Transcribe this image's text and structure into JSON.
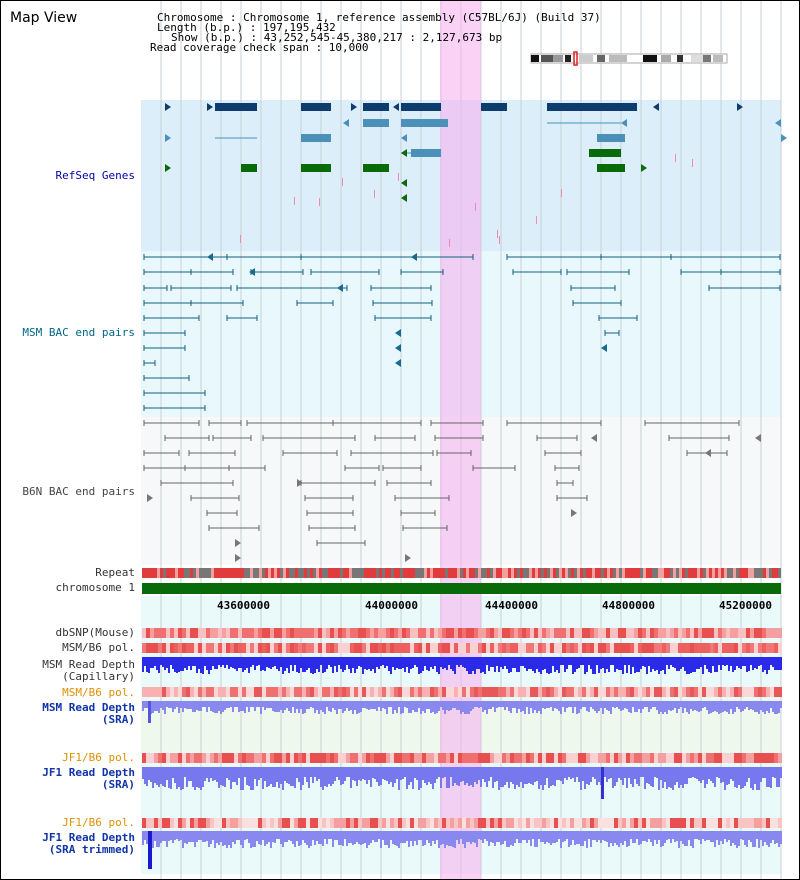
{
  "view": {
    "title": "Map View"
  },
  "info": {
    "chromosome": "Chromosome     : Chromosome 1, reference assembly (C57BL/6J) (Build 37)",
    "length": "Length (b.p.) : 197,195,432",
    "show": "Show (b.p.) : 43,252,545-45,380,217 : 2,127,673 bp",
    "coverage": "Read coverage check span : 10,000"
  },
  "tracks": {
    "refseq": "RefSeq Genes",
    "msm_bac": "MSM BAC end pairs",
    "b6n_bac": "B6N BAC end pairs",
    "repeat": "Repeat",
    "chromosome": "chromosome 1",
    "dbsnp": "dbSNP(Mouse)",
    "msm_b6_pol": "MSM/B6 pol.",
    "msm_depth_cap_1": "MSM Read Depth",
    "msm_depth_cap_2": "(Capillary)",
    "msm_b6_pol_2": "MSM/B6 pol.",
    "msm_depth_sra_1": "MSM Read Depth",
    "msm_depth_sra_2": "(SRA)",
    "jf1_pol": "JF1/B6 pol.",
    "jf1_depth_1": "JF1 Read Depth",
    "jf1_depth_2": "(SRA)",
    "jf1_pol_2": "JF1/B6 pol.",
    "jf1_trim_1": "JF1 Read Depth",
    "jf1_trim_2": "(SRA trimmed)"
  },
  "axis": {
    "ticks": [
      "43600000",
      "44000000",
      "44400000",
      "44800000",
      "45200000"
    ]
  },
  "colors": {
    "highlight": "#f5b4f0",
    "gene_dark": "#0d3c6e",
    "gene_mid": "#4a90b8",
    "gene_green": "#0a6a0a",
    "depth_blue": "#2a2ae8"
  }
}
